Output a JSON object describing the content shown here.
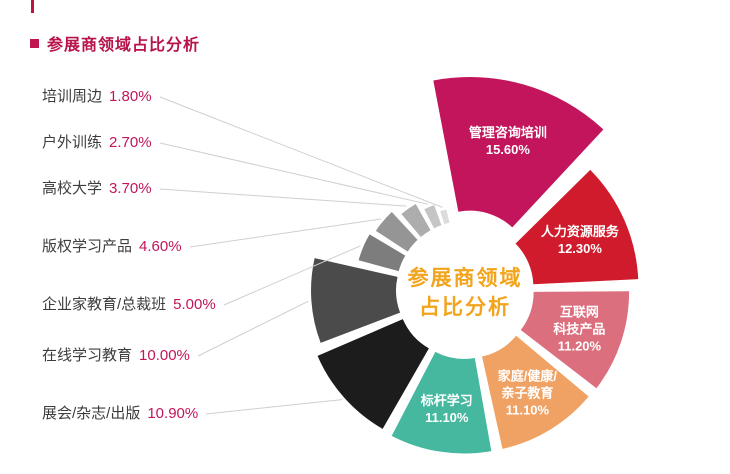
{
  "page": {
    "title": "参展商领域占比分析",
    "accent_color": "#c2155b"
  },
  "chart_data": {
    "type": "pie",
    "variant": "exploded-donut-rose",
    "title": "参展商领域占比分析",
    "center_label_lines": [
      "参展商领域",
      "占比分析"
    ],
    "center_label_color": "#f3a41d",
    "legend_position": "left-labels-with-leader-lines",
    "slices": [
      {
        "label": "管理咨询培训",
        "value": 15.6,
        "percent_text": "15.60%",
        "color": "#c2155b",
        "label_placement": "inside",
        "label_lines": [
          "管理咨询培训",
          "15.60%"
        ]
      },
      {
        "label": "人力资源服务",
        "value": 12.3,
        "percent_text": "12.30%",
        "color": "#cf1b2b",
        "label_placement": "inside",
        "label_lines": [
          "人力资源服务",
          "12.30%"
        ]
      },
      {
        "label": "互联网科技产品",
        "value": 11.2,
        "percent_text": "11.20%",
        "color": "#db6f7e",
        "label_placement": "inside",
        "label_lines": [
          "互联网",
          "科技产品",
          "11.20%"
        ]
      },
      {
        "label": "家庭/健康/亲子教育",
        "value": 11.1,
        "percent_text": "11.10%",
        "color": "#efa263",
        "label_placement": "inside",
        "label_lines": [
          "家庭/健康/",
          "亲子教育",
          "11.10%"
        ]
      },
      {
        "label": "标杆学习",
        "value": 11.1,
        "percent_text": "11.10%",
        "color": "#46b89f",
        "label_placement": "inside",
        "label_lines": [
          "标杆学习",
          "11.10%"
        ]
      },
      {
        "label": "展会/杂志/出版",
        "value": 10.9,
        "percent_text": "10.90%",
        "color": "#1c1c1c",
        "label_placement": "outside"
      },
      {
        "label": "在线学习教育",
        "value": 10.0,
        "percent_text": "10.00%",
        "color": "#4b4b4b",
        "label_placement": "outside"
      },
      {
        "label": "企业家教育/总裁班",
        "value": 5.0,
        "percent_text": "5.00%",
        "color": "#7d7d7d",
        "label_placement": "outside"
      },
      {
        "label": "版权学习产品",
        "value": 4.6,
        "percent_text": "4.60%",
        "color": "#959595",
        "label_placement": "outside"
      },
      {
        "label": "高校大学",
        "value": 3.7,
        "percent_text": "3.70%",
        "color": "#adadad",
        "label_placement": "outside"
      },
      {
        "label": "户外训练",
        "value": 2.7,
        "percent_text": "2.70%",
        "color": "#c5c5c5",
        "label_placement": "outside"
      },
      {
        "label": "培训周边",
        "value": 1.8,
        "percent_text": "1.80%",
        "color": "#dcdcdc",
        "label_placement": "outside"
      }
    ]
  }
}
